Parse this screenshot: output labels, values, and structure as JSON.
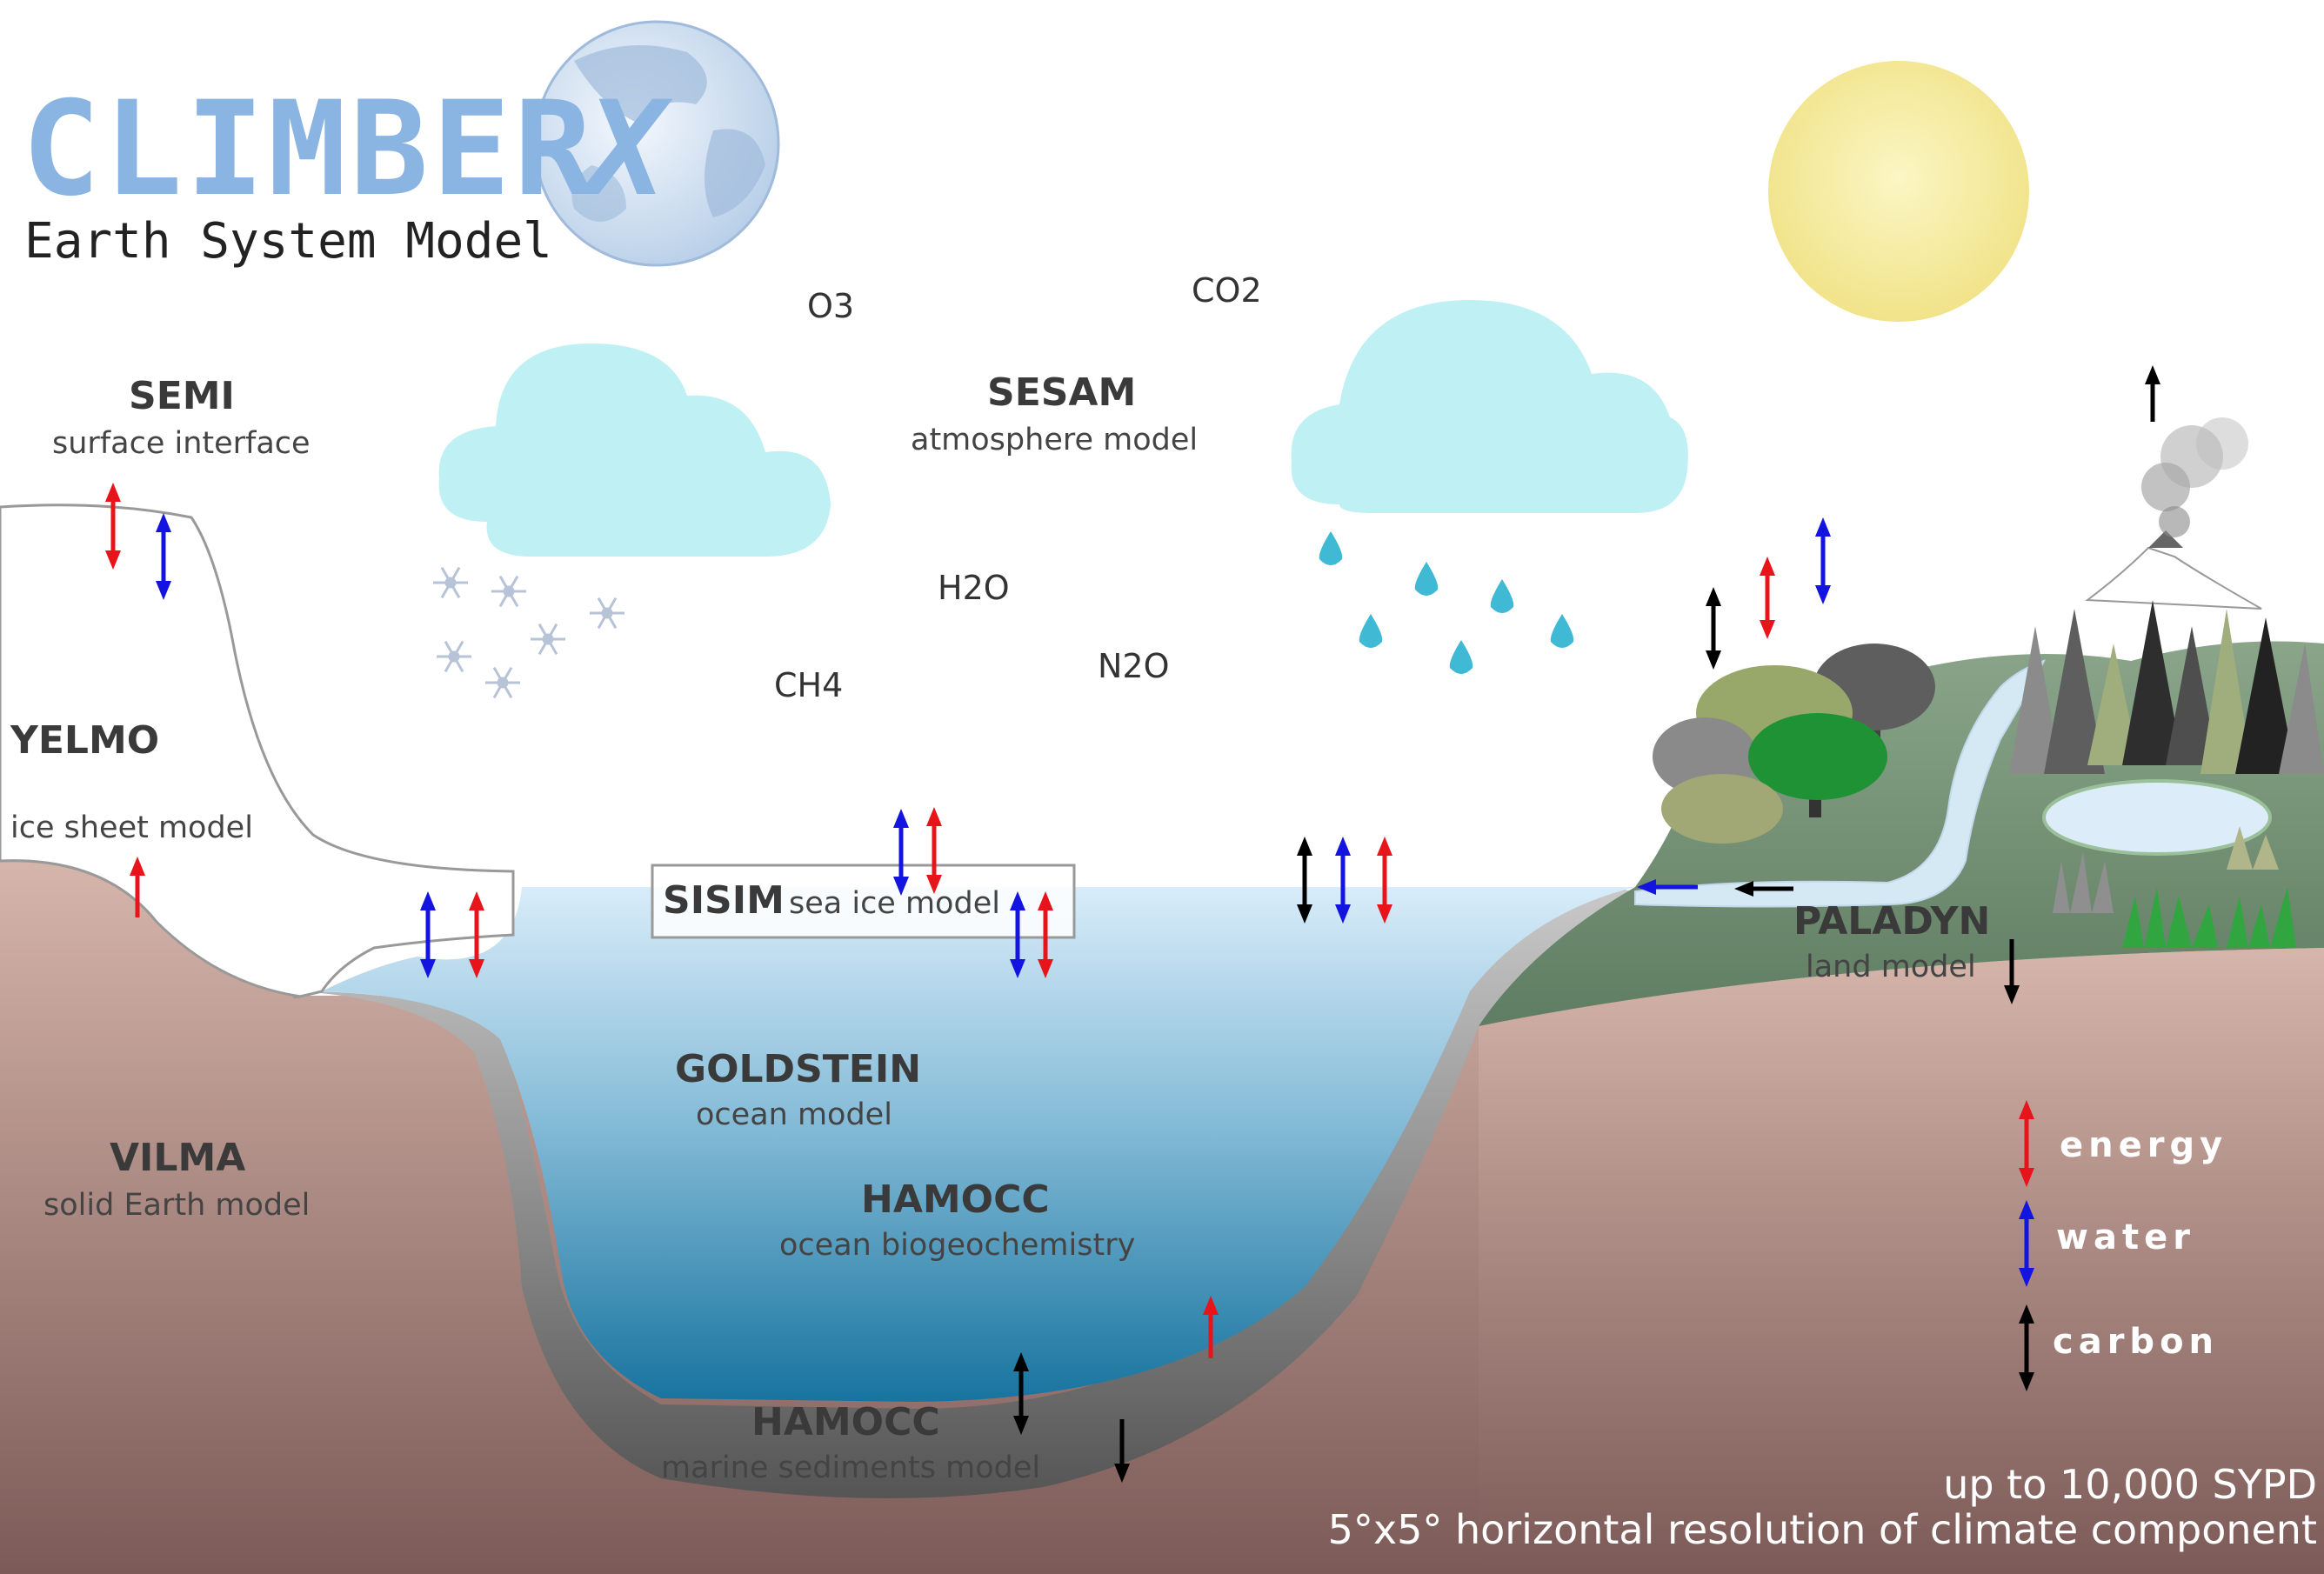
{
  "header": {
    "title": "CLIMBER",
    "title_x": "X",
    "subtitle": "Earth System Model"
  },
  "gases": {
    "o3": "O3",
    "co2": "CO2",
    "h2o": "H2O",
    "ch4": "CH4",
    "n2o": "N2O"
  },
  "components": {
    "semi": {
      "name": "SEMI",
      "desc": "surface interface"
    },
    "sesam": {
      "name": "SESAM",
      "desc": "atmosphere model"
    },
    "yelmo": {
      "name": "YELMO",
      "desc": "ice sheet models"
    },
    "sisim": {
      "name": "SISIM",
      "desc": "sea ice model"
    },
    "paladyn": {
      "name": "PALADYN",
      "desc": "land model"
    },
    "goldstein": {
      "name": "GOLDSTEIN",
      "desc": "ocean model"
    },
    "hamocc": {
      "name": "HAMOCC",
      "desc": "ocean biogeochemistry"
    },
    "vilma": {
      "name": "VILMA",
      "desc": "solid Earth model"
    },
    "hamocc_sed": {
      "name": "HAMOCC",
      "desc": "marine sediments model"
    }
  },
  "legend": [
    {
      "label": "energy",
      "color": "#e8141c"
    },
    {
      "label": "water",
      "color": "#1414e0"
    },
    {
      "label": "carbon",
      "color": "#000000"
    }
  ],
  "footer": {
    "line1": "up to 10,000 SYPD",
    "line2": "5°x5° horizontal resolution of climate component"
  },
  "colors": {
    "energy": "#e8141c",
    "water": "#1414e0",
    "carbon": "#000000",
    "ice_shelf_outline": "#999999",
    "land": "#6f8b6f",
    "soil": "#a97f7a",
    "ocean_top": "#cfe7f7",
    "ocean_bottom": "#1d7aa3",
    "sediment": "#6b6b6b",
    "cloud": "#bff0f3",
    "sun": "#f7ef9e"
  },
  "icons": [
    "globe-icon",
    "sun-icon",
    "cloud-snow-icon",
    "cloud-rain-icon",
    "snowflake-icon",
    "raindrop-icon",
    "volcano-icon",
    "tree-icon",
    "conifer-icon",
    "river-icon",
    "lake-icon"
  ]
}
